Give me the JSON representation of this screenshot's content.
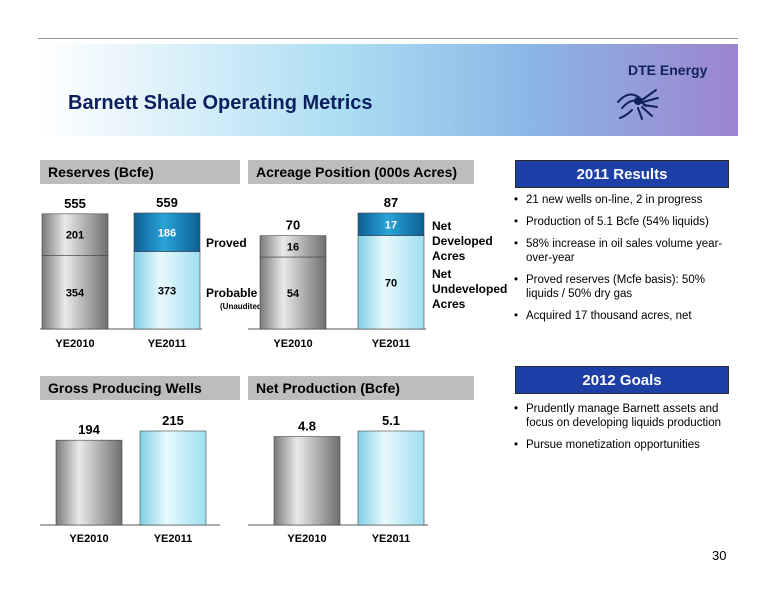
{
  "slide": {
    "title": "Barnett Shale Operating Metrics",
    "logo": "DTE Energy",
    "page_number": "30"
  },
  "colors": {
    "proved_blue": "#1070a8",
    "light_cyan": "#cfeff8",
    "header_gray": "#bdbdbd",
    "results_blue": "#1e3fa6"
  },
  "panels": {
    "reserves": "Reserves (Bcfe)",
    "acreage": "Acreage Position (000s Acres)",
    "wells": "Gross Producing Wells",
    "production": "Net Production (Bcfe)"
  },
  "results": {
    "title": "2011 Results",
    "items": [
      "21 new wells on-line, 2 in progress",
      "Production of 5.1 Bcfe (54% liquids)",
      "58% increase in oil sales volume year-over-year",
      "Proved reserves (Mcfe basis): 50% liquids / 50% dry gas",
      "Acquired 17 thousand acres, net"
    ]
  },
  "goals": {
    "title": "2012 Goals",
    "items": [
      "Prudently manage Barnett assets and focus on developing liquids production",
      "Pursue monetization opportunities"
    ]
  },
  "chart_data": [
    {
      "type": "bar",
      "title": "Reserves (Bcfe)",
      "categories": [
        "YE2010",
        "YE2011"
      ],
      "series": [
        {
          "name": "Probable",
          "values": [
            354,
            373
          ]
        },
        {
          "name": "Proved",
          "values": [
            201,
            186
          ]
        }
      ],
      "totals": [
        555,
        559
      ],
      "series_notes": {
        "Probable": "(Unaudited)"
      },
      "ylim": [
        0,
        559
      ]
    },
    {
      "type": "bar",
      "title": "Acreage Position (000s Acres)",
      "categories": [
        "YE2010",
        "YE2011"
      ],
      "series": [
        {
          "name": "Net Undeveloped Acres",
          "values": [
            54,
            70
          ]
        },
        {
          "name": "Net Developed Acres",
          "values": [
            16,
            17
          ]
        }
      ],
      "totals": [
        70,
        87
      ],
      "ylim": [
        0,
        87
      ]
    },
    {
      "type": "bar",
      "title": "Gross Producing Wells",
      "categories": [
        "YE2010",
        "YE2011"
      ],
      "values": [
        194,
        215
      ],
      "ylim": [
        0,
        215
      ]
    },
    {
      "type": "bar",
      "title": "Net Production (Bcfe)",
      "categories": [
        "YE2010",
        "YE2011"
      ],
      "values": [
        4.8,
        5.1
      ],
      "ylim": [
        0,
        5.1
      ]
    }
  ]
}
